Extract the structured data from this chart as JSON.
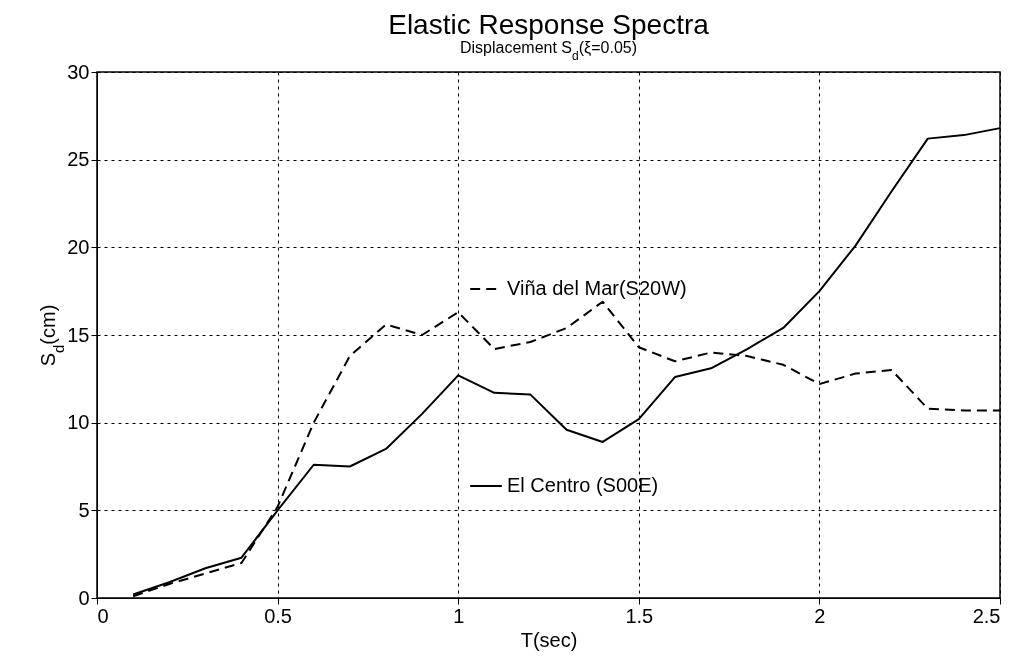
{
  "chart_data": {
    "type": "line",
    "title": "Elastic Response Spectra",
    "subtitle": "Displacement S$_{d}$(ξ=0.05)",
    "xlabel": "T(sec)",
    "ylabel": "S$_{d}$(cm)",
    "x": [
      0.1,
      0.2,
      0.3,
      0.4,
      0.5,
      0.6,
      0.7,
      0.8,
      0.9,
      1.0,
      1.1,
      1.2,
      1.3,
      1.4,
      1.5,
      1.6,
      1.7,
      1.8,
      1.9,
      2.0,
      2.1,
      2.2,
      2.3,
      2.4,
      2.5
    ],
    "series": [
      {
        "name": "Viña del Mar(S20W)",
        "color": "#000000",
        "line_style": "dashed",
        "values": [
          0.1,
          0.8,
          1.4,
          2.0,
          5.2,
          10.0,
          13.8,
          15.6,
          15.0,
          16.3,
          14.2,
          14.6,
          15.4,
          16.9,
          14.3,
          13.5,
          14.0,
          13.8,
          13.3,
          12.2,
          12.8,
          13.0,
          10.8,
          10.7,
          10.7
        ]
      },
      {
        "name": "El Centro (S00E)",
        "color": "#000000",
        "line_style": "solid",
        "values": [
          0.2,
          0.9,
          1.7,
          2.3,
          5.0,
          7.6,
          7.5,
          8.5,
          10.5,
          12.7,
          11.7,
          11.6,
          9.6,
          8.9,
          10.2,
          12.6,
          13.1,
          14.2,
          15.4,
          17.5,
          20.1,
          23.2,
          26.2,
          26.4,
          26.8
        ]
      }
    ],
    "xlim": [
      0,
      2.5
    ],
    "xticks": [
      0,
      0.5,
      1,
      1.5,
      2,
      2.5
    ],
    "ylim": [
      0,
      30
    ],
    "yticks": [
      0,
      5,
      10,
      15,
      20,
      25,
      30
    ],
    "grid": true,
    "legend": "center"
  }
}
